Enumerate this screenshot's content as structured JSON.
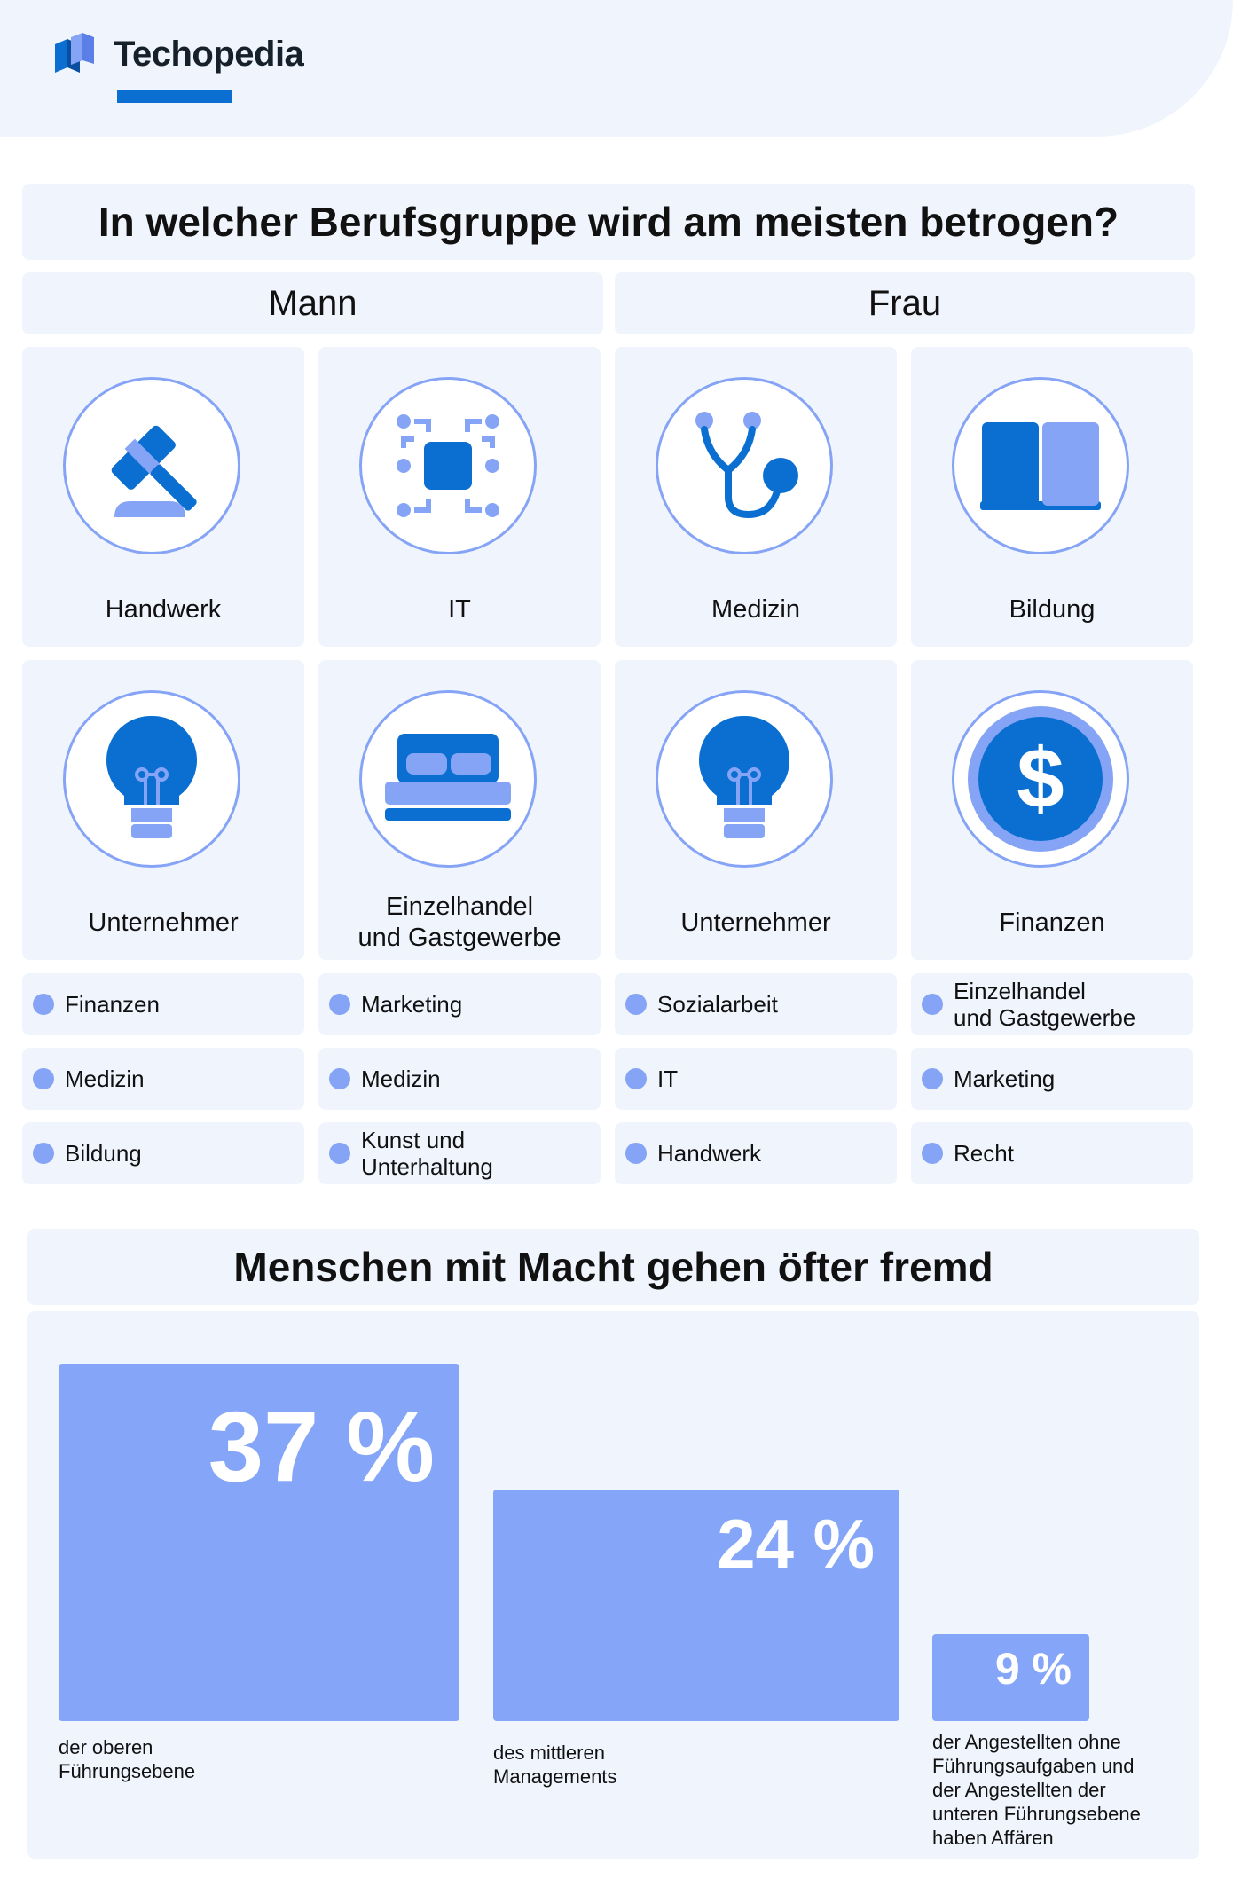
{
  "brand": {
    "name": "Techopedia",
    "accent": "#0a6fd1",
    "light": "#86a4f5",
    "panel_bg": "#f0f4fd"
  },
  "section1": {
    "title": "In welcher Berufsgruppe wird am meisten betrogen?",
    "columns": [
      "Mann",
      "Frau"
    ],
    "top_cards": [
      {
        "label": "Handwerk",
        "icon": "gavel-icon"
      },
      {
        "label": "IT",
        "icon": "chip-icon"
      },
      {
        "label": "Medizin",
        "icon": "stethoscope-icon"
      },
      {
        "label": "Bildung",
        "icon": "book-icon"
      },
      {
        "label": "Unternehmer",
        "icon": "lightbulb-icon"
      },
      {
        "label": "Einzelhandel\nund Gastgewerbe",
        "icon": "bed-icon"
      },
      {
        "label": "Unternehmer",
        "icon": "lightbulb-icon"
      },
      {
        "label": "Finanzen",
        "icon": "dollar-coin-icon"
      }
    ],
    "list_rows": [
      [
        "Finanzen",
        "Marketing",
        "Sozialarbeit",
        "Einzelhandel\nund Gastgewerbe"
      ],
      [
        "Medizin",
        "Medizin",
        "IT",
        "Marketing"
      ],
      [
        "Bildung",
        "Kunst und\nUnterhaltung",
        "Handwerk",
        "Recht"
      ]
    ]
  },
  "section2": {
    "title": "Menschen mit Macht gehen öfter fremd",
    "bars": [
      {
        "value": 37,
        "label": "37 %",
        "caption": "der oberen\nFührungsebene"
      },
      {
        "value": 24,
        "label": "24 %",
        "caption": "des mittleren\nManagements"
      },
      {
        "value": 9,
        "label": "9 %",
        "caption": "der Angestellten ohne\nFührungsaufgaben und\nder Angestellten der\nunteren Führungsebene\nhaben Affären"
      }
    ]
  }
}
